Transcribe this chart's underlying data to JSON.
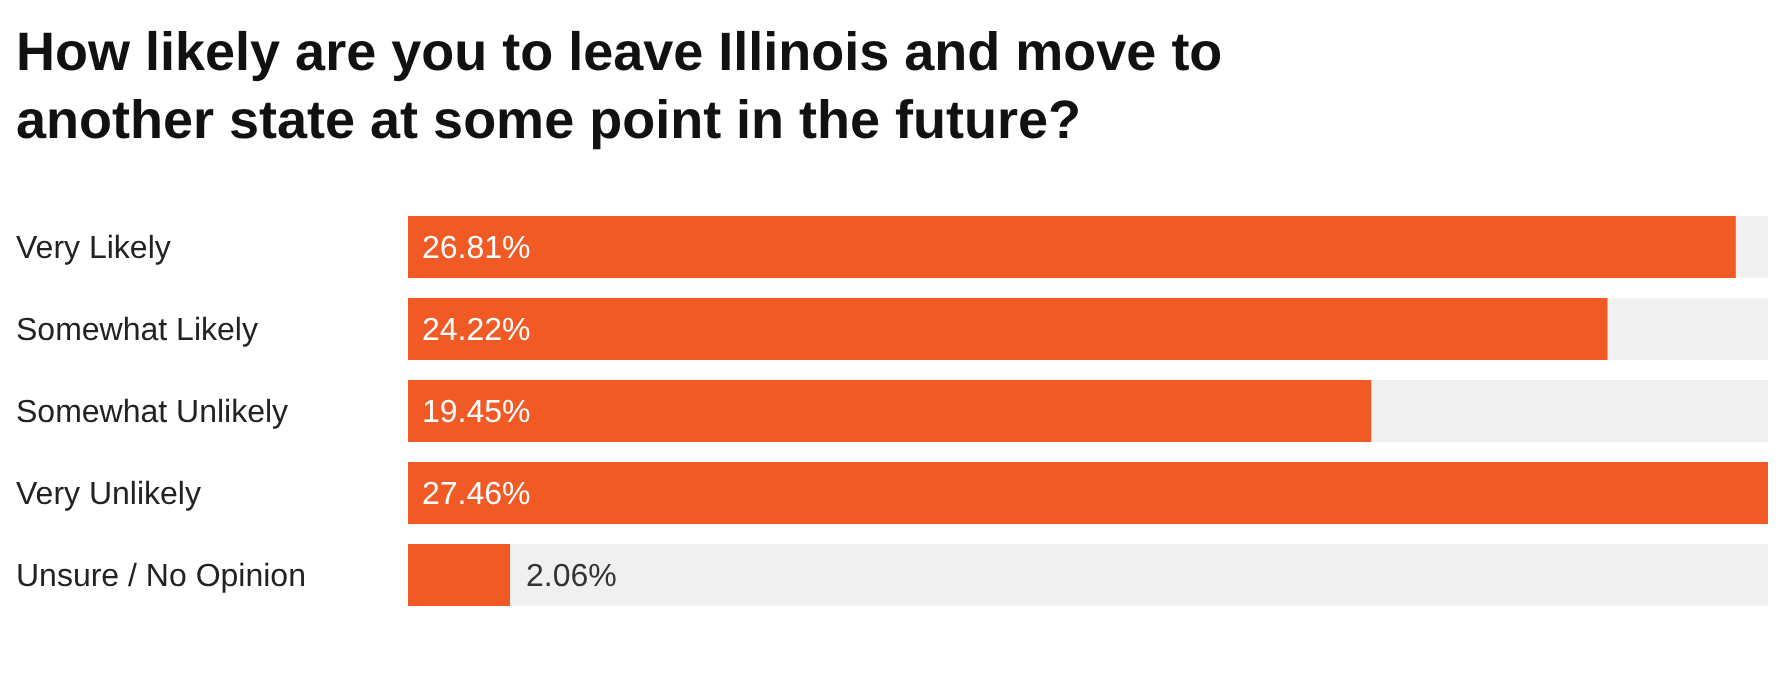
{
  "chart_data": {
    "type": "bar",
    "orientation": "horizontal",
    "title": "How likely are you to leave Illinois and move to another state at some point in the future?",
    "categories": [
      "Very Likely",
      "Somewhat Likely",
      "Somewhat Unlikely",
      "Very Unlikely",
      "Unsure / No Opinion"
    ],
    "values": [
      26.81,
      24.22,
      19.45,
      27.46,
      2.06
    ],
    "value_labels": [
      "26.81%",
      "24.22%",
      "19.45%",
      "27.46%",
      "2.06%"
    ],
    "color": "#f15a24"
  }
}
